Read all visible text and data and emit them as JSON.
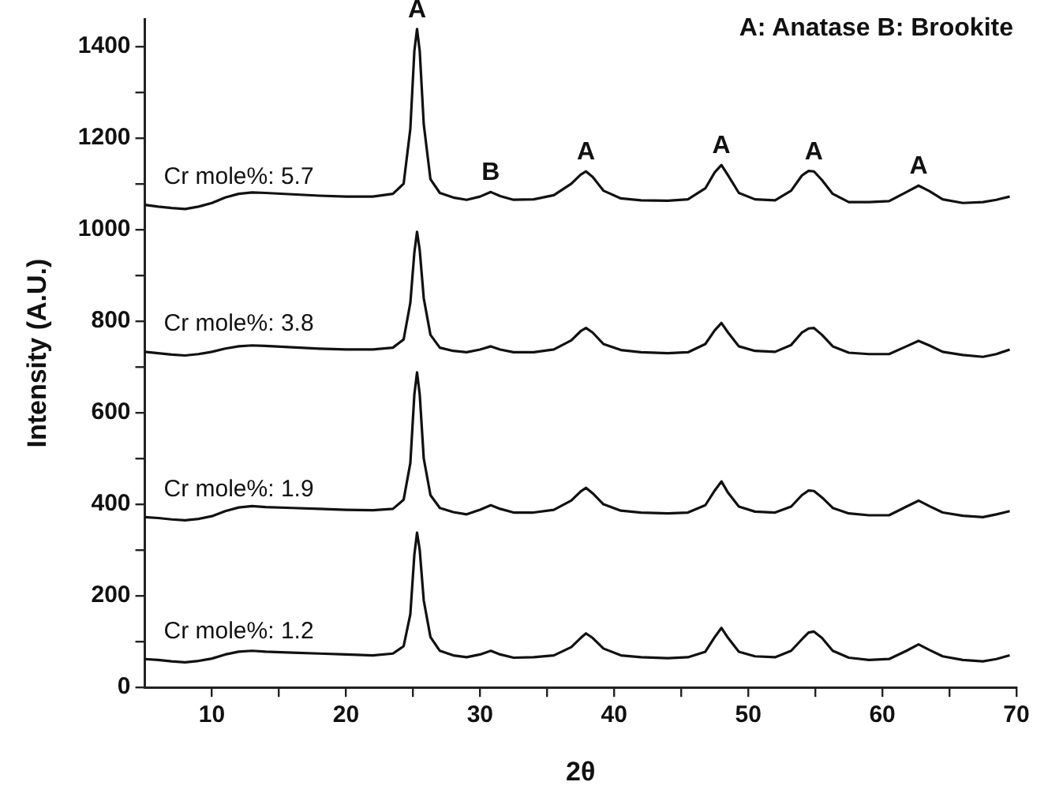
{
  "chart_data": {
    "type": "line",
    "xlabel": "2θ",
    "ylabel": "Intensity (A.U.)",
    "x": [
      5,
      6,
      7,
      8,
      9,
      10,
      11,
      12,
      13,
      14,
      16,
      18,
      20,
      22,
      23.5,
      24.3,
      24.8,
      25.1,
      25.3,
      25.5,
      25.8,
      26.3,
      27,
      28,
      29,
      30,
      30.8,
      31.5,
      32.5,
      34,
      35.5,
      36.8,
      37.5,
      37.9,
      38.4,
      39.2,
      40.5,
      42,
      44,
      45.5,
      46.8,
      47.5,
      48,
      48.5,
      49.3,
      50.5,
      52,
      53.2,
      54,
      54.5,
      54.9,
      55.5,
      56.3,
      57.5,
      59,
      60.5,
      61.8,
      62.7,
      63.5,
      64.5,
      66,
      67.5,
      68.5,
      69.5
    ],
    "series": [
      {
        "name": "Cr mole%: 1.2",
        "color": "#111111",
        "values": [
          62,
          60,
          57,
          55,
          58,
          63,
          72,
          78,
          80,
          78,
          76,
          74,
          72,
          70,
          74,
          90,
          160,
          290,
          338,
          300,
          190,
          110,
          80,
          70,
          66,
          72,
          80,
          72,
          65,
          66,
          70,
          88,
          108,
          118,
          108,
          85,
          70,
          66,
          64,
          66,
          78,
          110,
          130,
          108,
          78,
          68,
          66,
          80,
          105,
          120,
          122,
          108,
          80,
          65,
          60,
          62,
          80,
          94,
          82,
          68,
          60,
          57,
          62,
          70
        ]
      },
      {
        "name": "Cr mole%: 1.9",
        "color": "#111111",
        "values": [
          372,
          370,
          367,
          365,
          368,
          374,
          385,
          393,
          396,
          394,
          392,
          390,
          388,
          387,
          390,
          410,
          490,
          640,
          688,
          640,
          500,
          420,
          392,
          383,
          378,
          388,
          398,
          390,
          382,
          382,
          388,
          408,
          428,
          436,
          424,
          400,
          386,
          382,
          380,
          382,
          398,
          430,
          450,
          425,
          395,
          384,
          382,
          395,
          420,
          430,
          429,
          415,
          392,
          380,
          376,
          376,
          395,
          408,
          396,
          382,
          375,
          372,
          378,
          385
        ]
      },
      {
        "name": "Cr mole%: 3.8",
        "color": "#111111",
        "values": [
          733,
          730,
          727,
          725,
          728,
          733,
          740,
          745,
          747,
          746,
          743,
          740,
          738,
          738,
          742,
          760,
          840,
          950,
          995,
          955,
          850,
          770,
          742,
          735,
          732,
          738,
          745,
          738,
          732,
          732,
          738,
          758,
          778,
          785,
          775,
          750,
          737,
          732,
          730,
          732,
          750,
          780,
          796,
          775,
          745,
          735,
          733,
          748,
          775,
          784,
          785,
          770,
          745,
          731,
          728,
          728,
          745,
          757,
          747,
          733,
          726,
          722,
          728,
          738
        ]
      },
      {
        "name": "Cr mole%: 5.7",
        "color": "#111111",
        "values": [
          1054,
          1050,
          1047,
          1045,
          1050,
          1058,
          1070,
          1078,
          1081,
          1080,
          1077,
          1074,
          1072,
          1072,
          1078,
          1100,
          1220,
          1390,
          1438,
          1390,
          1230,
          1110,
          1080,
          1070,
          1065,
          1072,
          1082,
          1073,
          1065,
          1066,
          1075,
          1100,
          1120,
          1127,
          1115,
          1085,
          1068,
          1064,
          1063,
          1066,
          1090,
          1125,
          1141,
          1118,
          1080,
          1066,
          1064,
          1085,
          1118,
          1128,
          1127,
          1108,
          1078,
          1060,
          1060,
          1062,
          1082,
          1096,
          1084,
          1066,
          1058,
          1060,
          1065,
          1072
        ]
      }
    ],
    "xlim": [
      5,
      70
    ],
    "xticks": [
      10,
      {
        "value": 15,
        "label": null
      },
      20,
      {
        "value": 25,
        "label": null
      },
      30,
      {
        "value": 35,
        "label": null
      },
      40,
      {
        "value": 45,
        "label": null
      },
      50,
      {
        "value": 55,
        "label": null
      },
      60,
      {
        "value": 65,
        "label": null
      },
      70
    ],
    "ylim": [
      0,
      1460
    ],
    "yticks": [
      0,
      {
        "value": 100,
        "label": null
      },
      200,
      {
        "value": 300,
        "label": null
      },
      400,
      {
        "value": 500,
        "label": null
      },
      600,
      {
        "value": 700,
        "label": null
      },
      800,
      {
        "value": 900,
        "label": null
      },
      1000,
      {
        "value": 1100,
        "label": null
      },
      1200,
      {
        "value": 1300,
        "label": null
      },
      1400
    ],
    "annotations": [
      "A: Anatase B: Brookite",
      {
        "text": "A",
        "x": 25.3,
        "y": 1438
      },
      {
        "text": "B",
        "x": 30.8,
        "y": 1082
      },
      {
        "text": "A",
        "x": 37.9,
        "y": 1127
      },
      {
        "text": "A",
        "x": 48,
        "y": 1141
      },
      {
        "text": "A",
        "x": 54.9,
        "y": 1127
      },
      {
        "text": "A",
        "x": 62.7,
        "y": 1096
      }
    ]
  }
}
